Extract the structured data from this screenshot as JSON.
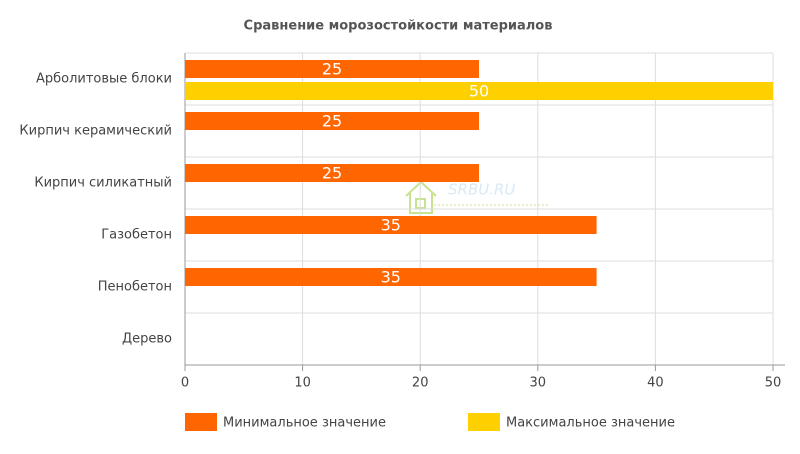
{
  "chart_data": {
    "type": "bar",
    "orientation": "horizontal",
    "title": "Сравнение морозостойкости материалов",
    "categories": [
      "Арболитовые блоки",
      "Кирпич керамический",
      "Кирпич силикатный",
      "Газобетон",
      "Пенобетон",
      "Дерево"
    ],
    "series": [
      {
        "name": "Минимальное значение",
        "color": "#ff6600",
        "values": [
          25,
          25,
          25,
          35,
          35,
          null
        ]
      },
      {
        "name": "Максимальное значение",
        "color": "#ffd000",
        "values": [
          50,
          null,
          null,
          null,
          null,
          null
        ]
      }
    ],
    "xlim": [
      0,
      50
    ],
    "xticks": [
      0,
      10,
      20,
      30,
      40,
      50
    ],
    "grid": true,
    "legend": "bottom",
    "watermark": "SRBU.RU"
  }
}
